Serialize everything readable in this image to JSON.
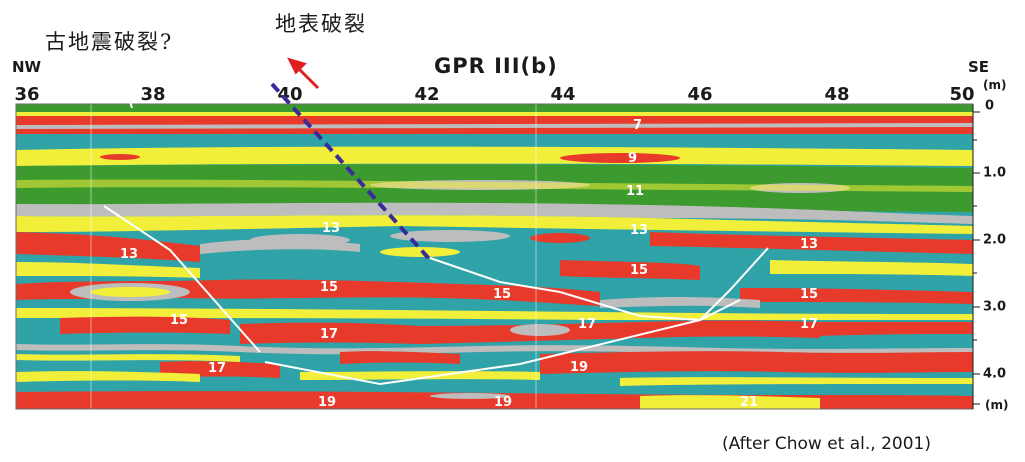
{
  "title": "GPR III(b)",
  "fault_label": "地表破裂",
  "paleo_label": "古地震破裂?",
  "left_direction": "NW",
  "right_direction": "SE",
  "x_unit": "(m)",
  "depth_unit": "(m)",
  "x_ticks": [
    "36",
    "38",
    "40",
    "42",
    "44",
    "46",
    "48",
    "50"
  ],
  "depth_ticks": [
    "0",
    "1.0",
    "2.0",
    "3.0",
    "4.0"
  ],
  "layer_labels": [
    "7",
    "9",
    "11",
    "13",
    "13",
    "13",
    "13",
    "15",
    "15",
    "15",
    "15",
    "15",
    "17",
    "17",
    "17",
    "17",
    "19",
    "19",
    "19",
    "21"
  ],
  "caption": "(After Chow et al., 2001)",
  "colors": {
    "red": "#e83a2a",
    "teal": "#2fa3a8",
    "yellow": "#f2ef3a",
    "green": "#3c9a2e",
    "gray": "#bdbdbd",
    "arrow": "#e02020",
    "fault_line": "#3a2a9a"
  }
}
